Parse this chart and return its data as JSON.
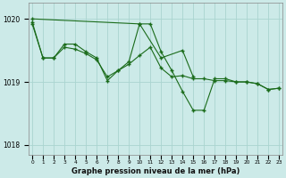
{
  "xlabel": "Graphe pression niveau de la mer (hPa)",
  "bg_color": "#cceae8",
  "grid_color": "#aad4d0",
  "line_color": "#1a6b1a",
  "ylim": [
    1017.85,
    1020.25
  ],
  "yticks": [
    1018,
    1019,
    1020
  ],
  "xticks": [
    0,
    1,
    2,
    3,
    4,
    5,
    6,
    7,
    8,
    9,
    10,
    11,
    12,
    13,
    14,
    15,
    16,
    17,
    18,
    19,
    20,
    21,
    22,
    23
  ],
  "line1_x": [
    0,
    1,
    2,
    3,
    4,
    5,
    6,
    7,
    8,
    9,
    10,
    11,
    12,
    13,
    14,
    15,
    16,
    17,
    18,
    19,
    20,
    21,
    22,
    23
  ],
  "line1_y": [
    1019.92,
    1019.38,
    1019.38,
    1019.55,
    1019.52,
    1019.45,
    1019.35,
    1019.08,
    1019.18,
    1019.28,
    1019.42,
    1019.55,
    1019.22,
    1019.08,
    1019.1,
    1019.05,
    1019.05,
    1019.02,
    1019.02,
    1019.0,
    1019.0,
    1018.97,
    1018.88,
    1018.9
  ],
  "line2_x": [
    0,
    1,
    2,
    3,
    4,
    5,
    6,
    7,
    8,
    9,
    10,
    12,
    14,
    15
  ],
  "line2_y": [
    1019.95,
    1019.38,
    1019.38,
    1019.6,
    1019.6,
    1019.48,
    1019.38,
    1019.02,
    1019.18,
    1019.32,
    1019.92,
    1019.38,
    1019.5,
    1019.08
  ],
  "line3_x": [
    0,
    10,
    11,
    12,
    13,
    14,
    15,
    16,
    17,
    18,
    19,
    20,
    21,
    22,
    23
  ],
  "line3_y": [
    1020.0,
    1019.92,
    1019.92,
    1019.48,
    1019.18,
    1018.85,
    1018.55,
    1018.55,
    1019.05,
    1019.05,
    1019.0,
    1019.0,
    1018.97,
    1018.88,
    1018.9
  ]
}
